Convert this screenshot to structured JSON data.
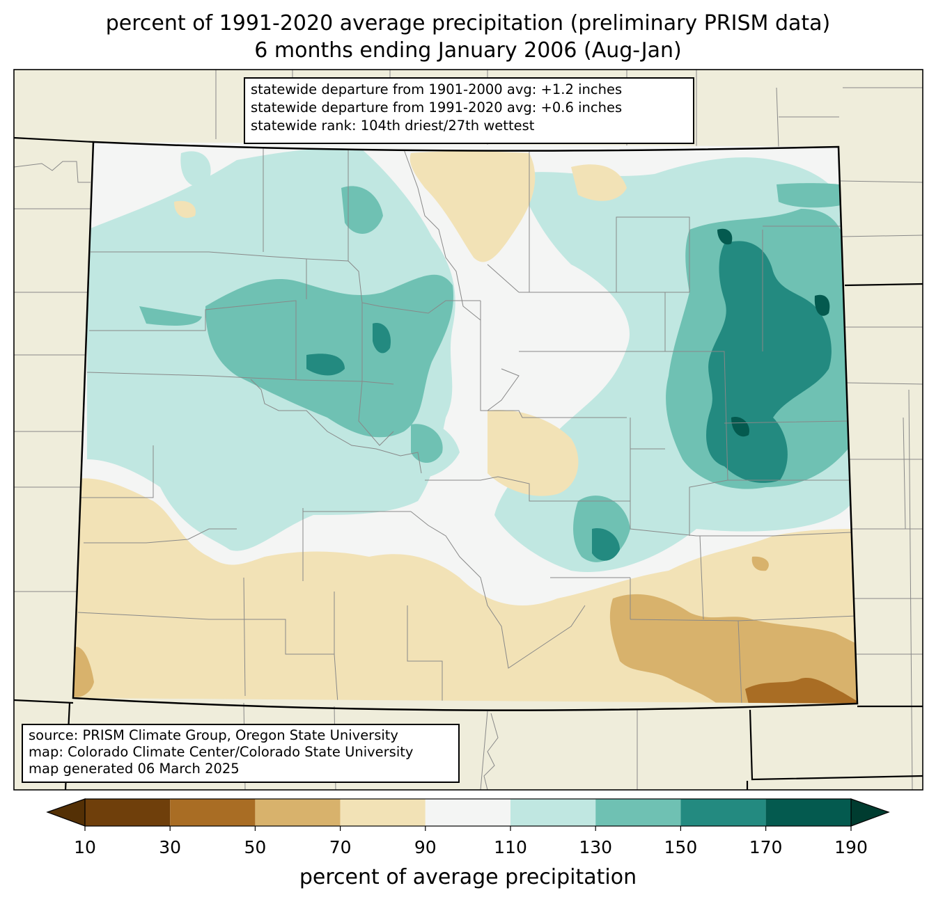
{
  "title": {
    "line1": "percent of 1991-2020 average precipitation (preliminary PRISM data)",
    "line2": "6 months ending January 2006 (Aug-Jan)"
  },
  "stats_box": {
    "line1": "statewide departure from 1901-2000 avg: +1.2 inches",
    "line2": "statewide departure from 1991-2020 avg: +0.6 inches",
    "line3": "statewide rank: 104th driest/27th wettest"
  },
  "source_box": {
    "line1": "source: PRISM Climate Group, Oregon State University",
    "line2": "map: Colorado Climate Center/Colorado State University",
    "line3": "map generated 06 March 2025"
  },
  "colorbar": {
    "label": "percent of average precipitation",
    "ticks": [
      "10",
      "30",
      "50",
      "70",
      "90",
      "110",
      "130",
      "150",
      "170",
      "190"
    ],
    "under_color": "#543005",
    "over_color": "#003c30",
    "colors": [
      "#6f3f0b",
      "#a96d24",
      "#d8b26c",
      "#f2e2b6",
      "#f4f5f4",
      "#c0e7e1",
      "#6fc1b3",
      "#238a80",
      "#045a4f"
    ]
  },
  "map_colors": {
    "land": "#efeddb",
    "border": "#000000",
    "county": "#888888"
  }
}
